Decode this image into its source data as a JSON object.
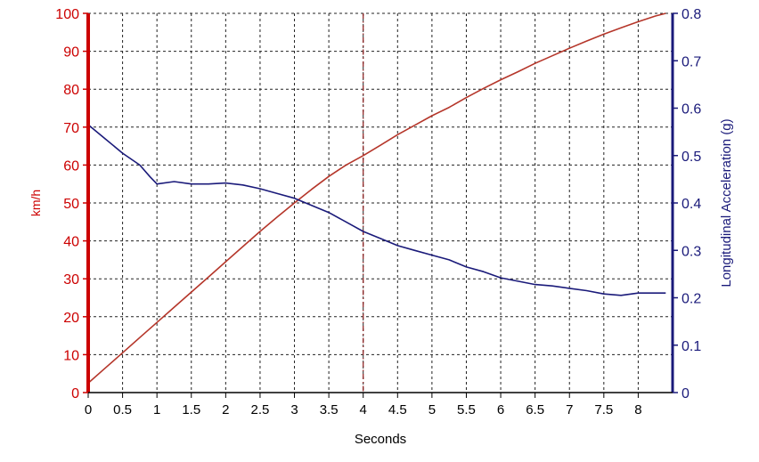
{
  "chart_data": {
    "type": "line",
    "xlabel": "Seconds",
    "ylabel_left": "km/h",
    "ylabel_right": "Longitudinal Acceleration (g)",
    "xlim": [
      0,
      8.5
    ],
    "ylim_left": [
      0,
      100
    ],
    "ylim_right": [
      0,
      0.8
    ],
    "grid": true,
    "colors": {
      "speed": "#b5362a",
      "accel": "#1a1a7a",
      "left_axis": "#cc0000",
      "right_axis": "#1a1a7a",
      "grid": "#222222",
      "marker_line": "#8b1a1a"
    },
    "x_ticks": [
      "0",
      "0.5",
      "1",
      "1.5",
      "2",
      "2.5",
      "3",
      "3.5",
      "4",
      "4.5",
      "5",
      "5.5",
      "6",
      "6.5",
      "7",
      "7.5",
      "8"
    ],
    "y_left_ticks": [
      "0",
      "10",
      "20",
      "30",
      "40",
      "50",
      "60",
      "70",
      "80",
      "90",
      "100"
    ],
    "y_right_ticks": [
      "0",
      "0.1",
      "0.2",
      "0.3",
      "0.4",
      "0.5",
      "0.6",
      "0.7",
      "0.8"
    ],
    "vertical_marker_x": 4.0,
    "series": [
      {
        "key": "speed",
        "axis": "left",
        "x": [
          0,
          0.25,
          0.5,
          0.75,
          1.0,
          1.25,
          1.5,
          1.75,
          2.0,
          2.25,
          2.5,
          2.75,
          3.0,
          3.25,
          3.5,
          3.75,
          4.0,
          4.25,
          4.5,
          4.75,
          5.0,
          5.25,
          5.5,
          5.75,
          6.0,
          6.25,
          6.5,
          6.75,
          7.0,
          7.25,
          7.5,
          7.75,
          8.0,
          8.25,
          8.4
        ],
        "values": [
          2.5,
          6.5,
          10.5,
          14.5,
          18.5,
          22.5,
          26.5,
          30.5,
          34.5,
          38.5,
          42.5,
          46.3,
          50.0,
          53.6,
          57.0,
          60.0,
          62.5,
          65.2,
          68.0,
          70.5,
          73.0,
          75.2,
          77.8,
          80.2,
          82.5,
          84.6,
          86.8,
          88.8,
          90.8,
          92.7,
          94.5,
          96.2,
          97.8,
          99.3,
          100
        ]
      },
      {
        "key": "accel",
        "axis": "right",
        "x": [
          0,
          0.25,
          0.5,
          0.75,
          0.9,
          1.0,
          1.25,
          1.5,
          1.75,
          2.0,
          2.25,
          2.5,
          2.75,
          3.0,
          3.25,
          3.5,
          3.75,
          4.0,
          4.25,
          4.5,
          4.75,
          5.0,
          5.25,
          5.5,
          5.75,
          6.0,
          6.25,
          6.5,
          6.75,
          7.0,
          7.25,
          7.5,
          7.75,
          8.0,
          8.25,
          8.4
        ],
        "values": [
          0.565,
          0.535,
          0.505,
          0.48,
          0.455,
          0.44,
          0.445,
          0.44,
          0.44,
          0.442,
          0.438,
          0.43,
          0.42,
          0.41,
          0.395,
          0.38,
          0.36,
          0.34,
          0.325,
          0.31,
          0.3,
          0.29,
          0.28,
          0.265,
          0.255,
          0.242,
          0.235,
          0.228,
          0.225,
          0.22,
          0.215,
          0.208,
          0.205,
          0.21,
          0.21,
          0.21
        ]
      }
    ]
  }
}
